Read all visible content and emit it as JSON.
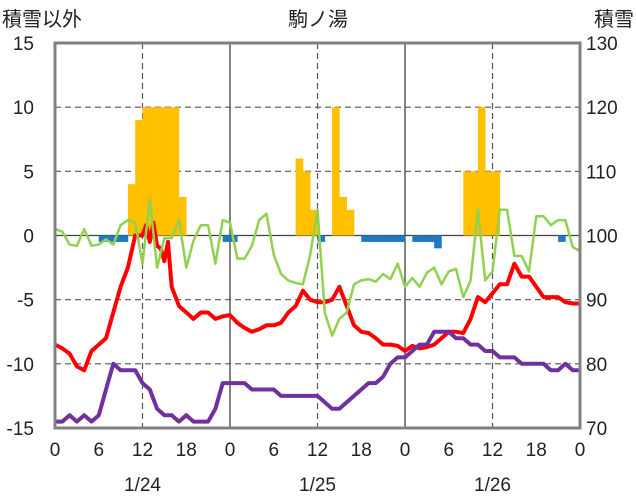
{
  "chart_data": {
    "type": "bar+line",
    "title": "駒ノ湯",
    "left_axis_label": "積雪以外",
    "right_axis_label": "積雪",
    "left_ylim": [
      -15,
      15
    ],
    "left_ticks": [
      15,
      10,
      5,
      0,
      -5,
      -10,
      -15
    ],
    "right_ylim": [
      70,
      130
    ],
    "right_ticks": [
      130,
      120,
      110,
      100,
      90,
      80,
      70
    ],
    "x_range": [
      0,
      72
    ],
    "x_tick_values": [
      0,
      6,
      12,
      18,
      24,
      30,
      36,
      42,
      48,
      54,
      60,
      66,
      72
    ],
    "x_tick_labels": [
      "0",
      "6",
      "12",
      "18",
      "0",
      "6",
      "12",
      "18",
      "0",
      "6",
      "12",
      "18",
      "0"
    ],
    "day_values": [
      12,
      36,
      60
    ],
    "day_labels": [
      "1/24",
      "1/25",
      "1/26"
    ],
    "day_separators": [
      24,
      48
    ],
    "dashed_gridlines": [
      12,
      36,
      60
    ],
    "grid": true,
    "colors": {
      "snowfall_positive": "#FFC000",
      "snowfall_negative": "#1F7AC4",
      "temperature": "#FF0000",
      "wind": "#92D050",
      "snow_depth": "#7030A0",
      "frame": "#808080",
      "separator": "#404040"
    },
    "series": [
      {
        "axis": "left",
        "kind": "bar",
        "x": [
          6.5,
          7.5,
          8.5,
          9.5,
          10.5,
          11.5,
          12.5,
          13.5,
          14.5,
          15.5,
          16.5,
          17.5,
          23.5,
          24.5,
          33.5,
          34.5,
          35.5,
          36.5,
          38.5,
          39.5,
          40.5,
          42.5,
          43.5,
          44.5,
          45.5,
          46.5,
          47.5,
          49.5,
          50.5,
          51.5,
          52.5,
          56.5,
          57.5,
          58.5,
          59.5,
          60.5,
          69.5
        ],
        "values": [
          -0.5,
          -0.5,
          -0.5,
          -0.5,
          4,
          9,
          10,
          10,
          10,
          10,
          10,
          3,
          -0.5,
          -0.5,
          6,
          5,
          2,
          -0.5,
          10,
          3,
          2,
          -0.5,
          -0.5,
          -0.5,
          -0.5,
          -0.5,
          -0.5,
          -0.5,
          -0.5,
          -0.5,
          -1,
          5,
          5,
          10,
          5,
          5,
          -0.5
        ]
      },
      {
        "axis": "left",
        "kind": "line",
        "x": [
          0,
          1,
          2,
          3,
          4,
          5,
          6,
          7,
          8,
          9,
          10,
          11,
          12,
          12.5,
          13,
          13.5,
          14,
          14.5,
          15,
          15.5,
          16,
          17,
          18,
          19,
          20,
          21,
          22,
          23,
          24,
          25,
          26,
          27,
          28,
          29,
          30,
          31,
          32,
          33,
          34,
          35,
          36,
          37,
          38,
          39,
          40,
          41,
          42,
          43,
          44,
          45,
          46,
          47,
          48,
          49,
          50,
          51,
          52,
          53,
          54,
          55,
          56,
          57,
          58,
          59,
          60,
          61,
          62,
          63,
          64,
          65,
          66,
          67,
          68,
          69,
          70,
          71,
          72
        ],
        "values": [
          -8.5,
          -8.8,
          -9.2,
          -10.2,
          -10.5,
          -9,
          -8.5,
          -8,
          -6,
          -4,
          -2.5,
          0,
          0,
          0.8,
          -0.5,
          1,
          -0.8,
          -1,
          -2,
          -0.5,
          -4,
          -5.5,
          -6,
          -6.5,
          -6,
          -6,
          -6.5,
          -6.3,
          -6.2,
          -6.8,
          -7.2,
          -7.5,
          -7.3,
          -7,
          -7,
          -6.8,
          -6,
          -5.5,
          -4.3,
          -5,
          -5.2,
          -5.2,
          -5,
          -4,
          -5.5,
          -7,
          -7.5,
          -7.6,
          -8,
          -8.5,
          -8.5,
          -8.6,
          -9,
          -8.6,
          -8.8,
          -8.7,
          -8.5,
          -8,
          -7.5,
          -7.5,
          -7.6,
          -6.5,
          -4.8,
          -5.2,
          -4.5,
          -3.8,
          -3.8,
          -2.2,
          -3.2,
          -3.2,
          -4,
          -4.8,
          -4.8,
          -4.8,
          -5.2,
          -5.3,
          -5.3
        ]
      },
      {
        "axis": "left",
        "kind": "line",
        "x": [
          0,
          1,
          2,
          3,
          4,
          5,
          6,
          7,
          8,
          9,
          10,
          11,
          12,
          13,
          14,
          15,
          16,
          17,
          18,
          19,
          20,
          21,
          22,
          23,
          24,
          25,
          26,
          27,
          28,
          29,
          30,
          31,
          32,
          33,
          34,
          35,
          36,
          37,
          38,
          39,
          40,
          41,
          42,
          43,
          44,
          45,
          46,
          47,
          48,
          49,
          50,
          51,
          52,
          53,
          54,
          55,
          56,
          57,
          58,
          59,
          60,
          61,
          62,
          63,
          64,
          65,
          66,
          67,
          68,
          69,
          70,
          71,
          72
        ],
        "values": [
          0.5,
          0.3,
          -0.7,
          -0.8,
          0.5,
          -0.8,
          -0.7,
          -0.3,
          -0.7,
          0.8,
          1.2,
          1,
          -2.2,
          2.8,
          -2.5,
          -0.2,
          -0.2,
          1.2,
          -2.5,
          -0.4,
          0.8,
          0.8,
          -2.2,
          1.2,
          1,
          -1.8,
          -1.8,
          -0.8,
          1.2,
          1.7,
          -1.5,
          -3,
          -3.5,
          -3.7,
          -3.8,
          -1.5,
          2,
          -6,
          -7.8,
          -6.5,
          -6,
          -3.8,
          -3.5,
          -3.4,
          -3.6,
          -3,
          -3.4,
          -2.2,
          -4,
          -3.3,
          -4,
          -2.9,
          -2.5,
          -3.8,
          -2.8,
          -2.6,
          -4.8,
          -3.5,
          2,
          -3.5,
          -2.8,
          2,
          2,
          -1.6,
          -1.6,
          -2.8,
          1.5,
          1.5,
          0.8,
          1.2,
          1.2,
          -0.9,
          -1.2
        ]
      },
      {
        "axis": "right",
        "kind": "line",
        "x": [
          0,
          1,
          2,
          3,
          4,
          5,
          6,
          7,
          8,
          9,
          10,
          11,
          12,
          13,
          14,
          15,
          16,
          17,
          18,
          19,
          20,
          21,
          22,
          23,
          24,
          25,
          26,
          27,
          28,
          29,
          30,
          31,
          32,
          33,
          34,
          35,
          36,
          37,
          38,
          39,
          40,
          41,
          42,
          43,
          44,
          45,
          46,
          47,
          48,
          49,
          50,
          51,
          52,
          53,
          54,
          55,
          56,
          57,
          58,
          59,
          60,
          61,
          62,
          63,
          64,
          65,
          66,
          67,
          68,
          69,
          70,
          71,
          72
        ],
        "values": [
          71,
          71,
          72,
          71,
          72,
          71,
          72,
          76,
          80,
          79,
          79,
          79,
          77,
          76,
          73,
          72,
          72,
          71,
          72,
          71,
          71,
          71,
          73,
          77,
          77,
          77,
          77,
          76,
          76,
          76,
          76,
          75,
          75,
          75,
          75,
          75,
          75,
          74,
          73,
          73,
          74,
          75,
          76,
          77,
          77,
          78,
          80,
          81,
          81,
          82,
          83,
          83,
          85,
          85,
          85,
          84,
          84,
          83,
          83,
          82,
          82,
          81,
          81,
          81,
          80,
          80,
          80,
          80,
          79,
          79,
          80,
          79,
          79
        ]
      }
    ]
  }
}
